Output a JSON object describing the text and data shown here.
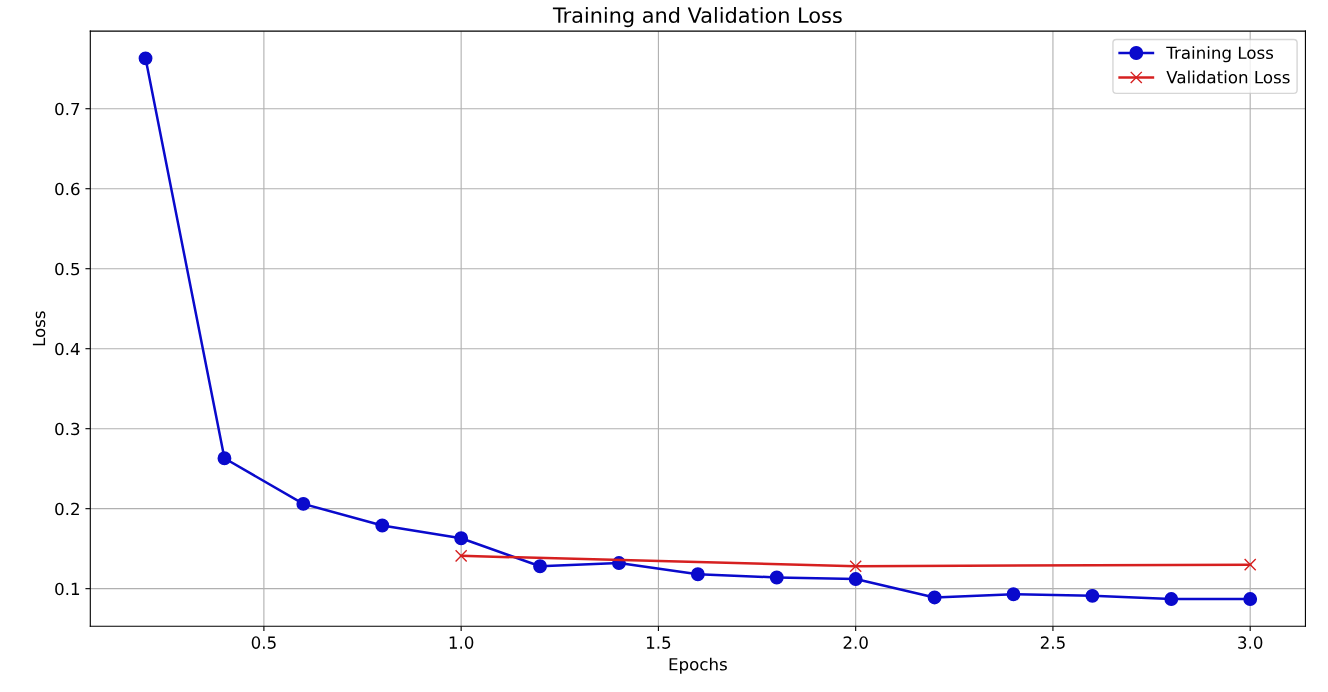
{
  "chart_data": {
    "type": "line",
    "title": "Training and Validation Loss",
    "xlabel": "Epochs",
    "ylabel": "Loss",
    "xlim": [
      0.06,
      3.14
    ],
    "ylim": [
      0.053,
      0.797
    ],
    "xticks": [
      {
        "value": 0.5,
        "label": "0.5"
      },
      {
        "value": 1.0,
        "label": "1.0"
      },
      {
        "value": 1.5,
        "label": "1.5"
      },
      {
        "value": 2.0,
        "label": "2.0"
      },
      {
        "value": 2.5,
        "label": "2.5"
      },
      {
        "value": 3.0,
        "label": "3.0"
      }
    ],
    "yticks": [
      0.1,
      0.2,
      0.3,
      0.4,
      0.5,
      0.6,
      0.7
    ],
    "grid": true,
    "legend": "top right",
    "series": [
      {
        "name": "Training Loss",
        "color": "#0a0acc",
        "marker": "circle",
        "x": [
          0.2,
          0.4,
          0.6,
          0.8,
          1.0,
          1.2,
          1.4,
          1.6,
          1.8,
          2.0,
          2.2,
          2.4,
          2.6,
          2.8,
          3.0
        ],
        "values": [
          0.763,
          0.263,
          0.206,
          0.179,
          0.163,
          0.128,
          0.132,
          0.118,
          0.114,
          0.112,
          0.089,
          0.093,
          0.091,
          0.087,
          0.087
        ]
      },
      {
        "name": "Validation Loss",
        "color": "#d62020",
        "marker": "cross",
        "x": [
          1.0,
          2.0,
          3.0
        ],
        "values": [
          0.141,
          0.128,
          0.13
        ]
      }
    ]
  }
}
